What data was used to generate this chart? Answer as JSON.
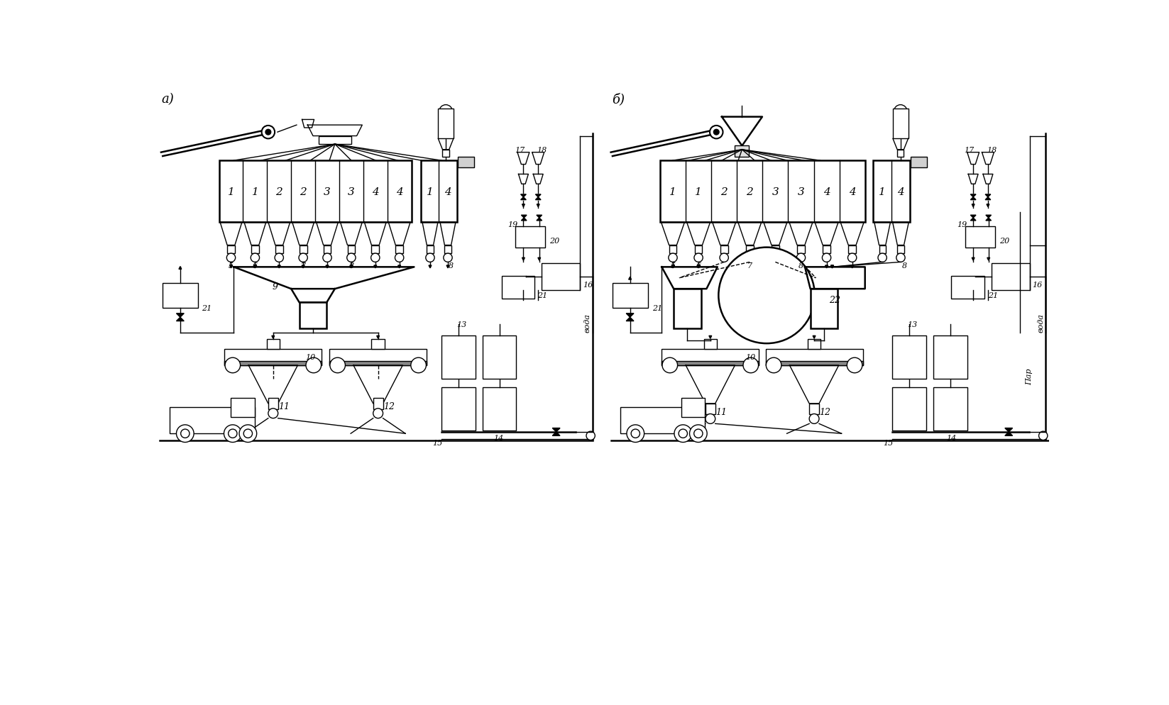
{
  "bg_color": "#ffffff",
  "lw": 1.0,
  "lw_thick": 1.8,
  "fig_width": 16.47,
  "fig_height": 9.95,
  "label_a": "a)",
  "label_b": "б)",
  "voda_text": "вода",
  "par_text": "Пар",
  "cyclone_labels": [
    "1",
    "1",
    "2",
    "2",
    "3",
    "3",
    "4",
    "4"
  ]
}
